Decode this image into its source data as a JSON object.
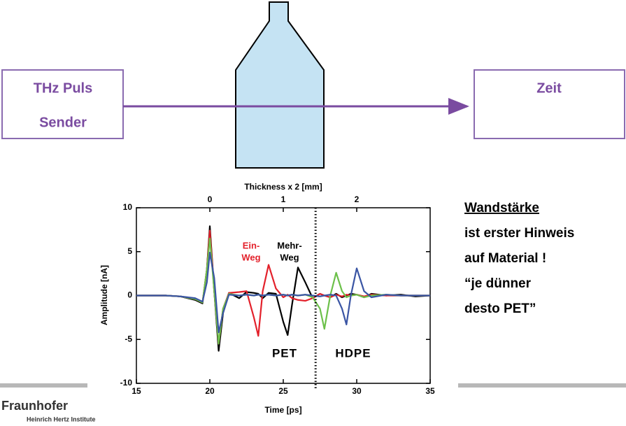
{
  "diagram": {
    "sender": [
      "THz Puls",
      "Sender"
    ],
    "receiver": "Zeit"
  },
  "notes": {
    "heading": "Wandstärke",
    "lines": [
      "ist erster Hinweis",
      "auf Material !",
      "“je dünner",
      "desto PET”"
    ]
  },
  "logo": {
    "name": "Fraunhofer",
    "institute": "Heinrich Hertz Institute"
  },
  "chart_data": {
    "type": "line",
    "xlabel": "Time [ps]",
    "ylabel": "Amplitude [nA]",
    "x2label": "Thickness x 2 [mm]",
    "xlim": [
      15,
      35
    ],
    "xticks": [
      15,
      20,
      25,
      30,
      35
    ],
    "ylim": [
      -10,
      10
    ],
    "yticks": [
      -10,
      -5,
      0,
      5,
      10
    ],
    "x2lim": [
      -1,
      3
    ],
    "x2ticks": [
      0,
      1,
      2
    ],
    "divider_x": 27.2,
    "annotations": [
      "Ein-",
      "Weg",
      "Mehr-",
      "Weg",
      "PET",
      "HDPE"
    ],
    "x": [
      15,
      17,
      18,
      19,
      19.5,
      19.8,
      20,
      20.3,
      20.6,
      20.9,
      21.3,
      22,
      22.5,
      23,
      23.3,
      23.6,
      24,
      24.5,
      25,
      25.3,
      25.6,
      26,
      26.5,
      27,
      27.5,
      27.8,
      28.2,
      28.6,
      29,
      29.3,
      29.6,
      30,
      30.5,
      31,
      32,
      33,
      34,
      35
    ],
    "series": [
      {
        "color": "#000000",
        "values": [
          0,
          0,
          -0.1,
          -0.5,
          -0.9,
          3,
          7.9,
          0.5,
          -6.3,
          -2,
          0.3,
          -0.3,
          0.4,
          0.3,
          0.2,
          -0.3,
          0.3,
          0.2,
          -3,
          -4.5,
          -1,
          3.2,
          1.5,
          -0.3,
          0.2,
          0,
          -0.2,
          0.2,
          -0.2,
          0,
          0.2,
          0.1,
          -0.2,
          0.2,
          0,
          0.1,
          -0.1,
          0
        ]
      },
      {
        "color": "#e3212b",
        "values": [
          0,
          0,
          -0.1,
          -0.4,
          -0.8,
          3,
          7.4,
          0.5,
          -5.5,
          -1.5,
          0.3,
          0.4,
          0.5,
          -2.5,
          -4.6,
          0.5,
          3.5,
          0.8,
          -0.2,
          0.1,
          -0.3,
          -0.5,
          -0.6,
          -0.3,
          0.2,
          0,
          -0.2,
          0.1,
          -0.1,
          0.1,
          0,
          0.1,
          -0.1,
          0.1,
          0,
          0,
          0,
          0
        ]
      },
      {
        "color": "#6cc04a",
        "values": [
          0,
          0,
          -0.1,
          -0.4,
          -0.8,
          3,
          6.5,
          0.5,
          -5.5,
          -1.5,
          0.2,
          0,
          0.1,
          0,
          0.1,
          0,
          0.1,
          0,
          0.1,
          0,
          0.1,
          0,
          0.1,
          -0.2,
          -1.5,
          -3.8,
          0,
          2.6,
          0.5,
          -0.2,
          0,
          0.1,
          -0.2,
          0,
          0.1,
          0,
          0,
          0
        ]
      },
      {
        "color": "#3a55a4",
        "values": [
          0,
          0,
          -0.1,
          -0.3,
          -0.7,
          1.5,
          4.9,
          2,
          -4.2,
          -2,
          0.1,
          0,
          0.1,
          0,
          0.1,
          0,
          0.1,
          0,
          0.1,
          0,
          0.1,
          0,
          0.1,
          0,
          -0.1,
          0,
          0.1,
          0,
          -1.5,
          -3.3,
          0,
          3.1,
          0.5,
          -0.2,
          0.1,
          0,
          0,
          0
        ]
      }
    ]
  }
}
